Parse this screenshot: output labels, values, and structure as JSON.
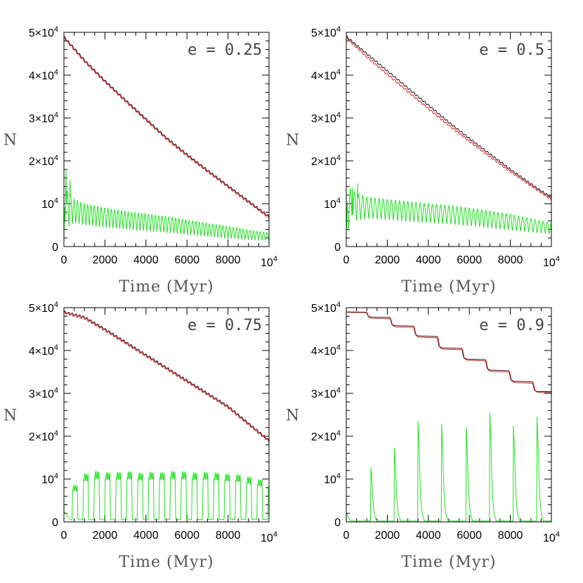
{
  "figure": {
    "panel_labels": [
      "e = 0.25",
      "e = 0.5",
      "e = 0.75",
      "e = 0.9"
    ],
    "xlabel": "Time (Myr)",
    "ylabel": "N",
    "x_ticks": [
      "0",
      "2000",
      "4000",
      "6000",
      "8000"
    ],
    "x_end_tick": {
      "base": "10",
      "exp": "4"
    },
    "y_ticks": [
      {
        "base": "0",
        "exp": ""
      },
      {
        "base": "10",
        "exp": "4"
      },
      {
        "base": "2×10",
        "exp": "4"
      },
      {
        "base": "3×10",
        "exp": "4"
      },
      {
        "base": "4×10",
        "exp": "4"
      },
      {
        "base": "5×10",
        "exp": "4"
      }
    ]
  },
  "colors": {
    "black_series": "#1a1a2e",
    "red_series": "#e8221b",
    "green_series": "#22e022",
    "axes": "#000000"
  },
  "chart_data": [
    {
      "type": "line",
      "panel": "e = 0.25",
      "xlim": [
        0,
        10000
      ],
      "ylim": [
        0,
        50000
      ],
      "xlabel": "Time (Myr)",
      "ylabel": "N",
      "series": [
        {
          "color": "#1a1a2e",
          "x": [
            0,
            1000,
            2000,
            3000,
            4000,
            5000,
            6000,
            7000,
            8000,
            9000,
            10000
          ],
          "values": [
            49000,
            43500,
            38700,
            34200,
            29800,
            25400,
            21500,
            17800,
            14200,
            10600,
            7000
          ]
        },
        {
          "color": "#e8221b",
          "x": [
            0,
            1000,
            2000,
            3000,
            4000,
            5000,
            6000,
            7000,
            8000,
            9000,
            10000
          ],
          "values": [
            48700,
            43200,
            38400,
            33900,
            29500,
            25100,
            21200,
            17500,
            13900,
            10300,
            6700
          ]
        },
        {
          "color": "#22e022",
          "osc": {
            "period": 165,
            "spikes": [
              [
                100,
                20000
              ],
              [
                300,
                17000
              ],
              [
                500,
                12000
              ]
            ]
          },
          "x": [
            0,
            500,
            1000,
            2000,
            3000,
            4000,
            5000,
            6000,
            7000,
            8000,
            9000,
            10000
          ],
          "upper": [
            14000,
            11000,
            10000,
            9000,
            8200,
            7600,
            7000,
            6200,
            5400,
            4700,
            3800,
            3200
          ],
          "lower": [
            4000,
            5500,
            5000,
            4400,
            4000,
            3600,
            3200,
            2800,
            2300,
            1900,
            1600,
            1500
          ]
        }
      ]
    },
    {
      "type": "line",
      "panel": "e = 0.5",
      "xlim": [
        0,
        10000
      ],
      "ylim": [
        0,
        50000
      ],
      "xlabel": "Time (Myr)",
      "ylabel": "N",
      "series": [
        {
          "color": "#1a1a2e",
          "x": [
            0,
            1000,
            2000,
            3000,
            4000,
            5000,
            6000,
            7000,
            8000,
            9000,
            10000
          ],
          "values": [
            49000,
            45000,
            41000,
            37000,
            33000,
            29000,
            25200,
            21600,
            18000,
            14600,
            11400
          ]
        },
        {
          "color": "#e8221b",
          "x": [
            0,
            1000,
            2000,
            3000,
            4000,
            5000,
            6000,
            7000,
            8000,
            9000,
            10000
          ],
          "values": [
            48700,
            44300,
            40200,
            36200,
            32200,
            28300,
            24600,
            21000,
            17500,
            14200,
            11000
          ]
        },
        {
          "color": "#22e022",
          "osc": {
            "period": 200,
            "spikes": [
              [
                300,
                15000
              ],
              [
                550,
                15500
              ]
            ]
          },
          "x": [
            0,
            500,
            1000,
            2000,
            3000,
            4000,
            5000,
            6000,
            7000,
            8000,
            9000,
            10000
          ],
          "upper": [
            14000,
            12500,
            11500,
            11000,
            10500,
            10000,
            9500,
            9000,
            8300,
            7500,
            6500,
            5500
          ],
          "lower": [
            3000,
            6000,
            6500,
            6200,
            5800,
            5500,
            5200,
            4800,
            4300,
            3800,
            3300,
            3000
          ]
        }
      ]
    },
    {
      "type": "line",
      "panel": "e = 0.75",
      "xlim": [
        0,
        10000
      ],
      "ylim": [
        0,
        50000
      ],
      "xlabel": "Time (Myr)",
      "ylabel": "N",
      "series": [
        {
          "color": "#1a1a2e",
          "x": [
            0,
            1000,
            2000,
            3000,
            4000,
            5000,
            6000,
            7000,
            8000,
            9000,
            10000
          ],
          "values": [
            49000,
            47800,
            45000,
            42000,
            39000,
            36000,
            33000,
            30000,
            27000,
            23000,
            19000
          ]
        },
        {
          "color": "#e8221b",
          "x": [
            0,
            1000,
            2000,
            3000,
            4000,
            5000,
            6000,
            7000,
            8000,
            9000,
            10000
          ],
          "values": [
            48800,
            47500,
            44700,
            41700,
            38700,
            35700,
            32700,
            29700,
            26700,
            22700,
            18800
          ]
        },
        {
          "color": "#22e022",
          "osc": {
            "period": 530,
            "start": 300,
            "peaks": [
              8500,
              11200,
              11800,
              11500,
              11600,
              11700,
              11400,
              11600,
              11500,
              11800,
              11700,
              11500,
              11600,
              11400,
              11200,
              11000,
              10500,
              9800,
              9200
            ]
          },
          "x": [
            0,
            300,
            10000
          ],
          "baseline": [
            2500,
            500,
            600
          ]
        }
      ]
    },
    {
      "type": "line",
      "panel": "e = 0.9",
      "xlim": [
        0,
        10000
      ],
      "ylim": [
        0,
        50000
      ],
      "xlabel": "Time (Myr)",
      "ylabel": "N",
      "series": [
        {
          "color": "#1a1a2e",
          "steps": {
            "t": [
              1100,
              2250,
              3400,
              4550,
              5750,
              6900,
              8050,
              9200
            ],
            "levels": [
              49000,
              47800,
              45800,
              43400,
              40600,
              38000,
              35400,
              32800,
              30400
            ]
          }
        },
        {
          "color": "#e8221b",
          "steps": {
            "t": [
              1100,
              2250,
              3400,
              4550,
              5750,
              6900,
              8050,
              9200
            ],
            "levels": [
              48900,
              47500,
              45500,
              43100,
              40300,
              37700,
              35100,
              32500,
              30200
            ]
          }
        },
        {
          "color": "#22e022",
          "pulses": {
            "t": [
              1200,
              2350,
              3500,
              4650,
              5850,
              7000,
              8150,
              9300
            ],
            "peaks": [
              12700,
              17300,
              23400,
              22800,
              22100,
              25500,
              22400,
              24500
            ]
          },
          "x": [
            0,
            200,
            10000
          ],
          "baseline": [
            2000,
            200,
            200
          ]
        }
      ]
    }
  ]
}
